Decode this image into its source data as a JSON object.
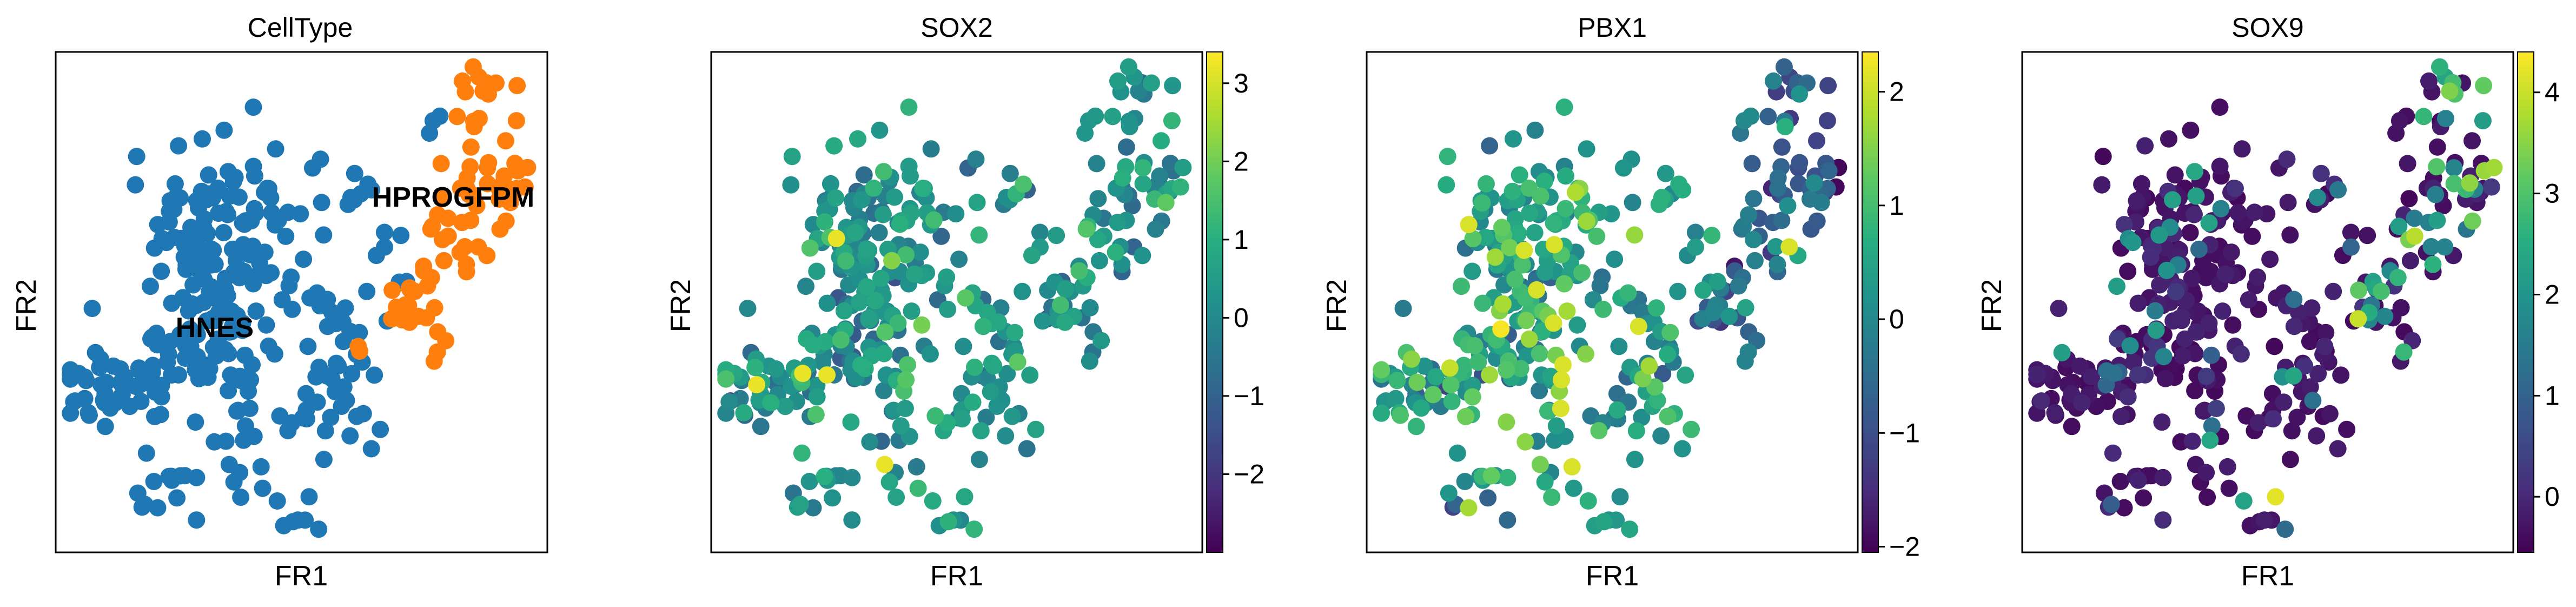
{
  "chart_data": [
    {
      "type": "scatter",
      "title": "CellType",
      "xlabel": "FR1",
      "ylabel": "FR2",
      "categories": [
        {
          "name": "HNES",
          "color": "#1f77b4"
        },
        {
          "name": "HPROGFPM",
          "color": "#ff7f0e"
        }
      ],
      "cluster_labels": [
        "HNES",
        "HPROGFPM"
      ]
    },
    {
      "type": "scatter",
      "title": "SOX2",
      "xlabel": "FR1",
      "ylabel": "FR2",
      "colormap": "viridis",
      "colorbar": {
        "min": -3.0,
        "max": 3.4,
        "ticks": [
          3,
          2,
          1,
          0,
          -1,
          -2
        ],
        "tick_labels": [
          "3",
          "2",
          "1",
          "0",
          "−1",
          "−2"
        ]
      }
    },
    {
      "type": "scatter",
      "title": "PBX1",
      "xlabel": "FR1",
      "ylabel": "FR2",
      "colormap": "viridis",
      "colorbar": {
        "min": -2.05,
        "max": 2.35,
        "ticks": [
          2,
          1,
          0,
          -1,
          -2
        ],
        "tick_labels": [
          "2",
          "1",
          "0",
          "−1",
          "−2"
        ]
      }
    },
    {
      "type": "scatter",
      "title": "SOX9",
      "xlabel": "FR1",
      "ylabel": "FR2",
      "colormap": "viridis",
      "colorbar": {
        "min": -0.55,
        "max": 4.4,
        "ticks": [
          4,
          3,
          2,
          1,
          0
        ],
        "tick_labels": [
          "4",
          "3",
          "2",
          "1",
          "0"
        ]
      }
    }
  ]
}
